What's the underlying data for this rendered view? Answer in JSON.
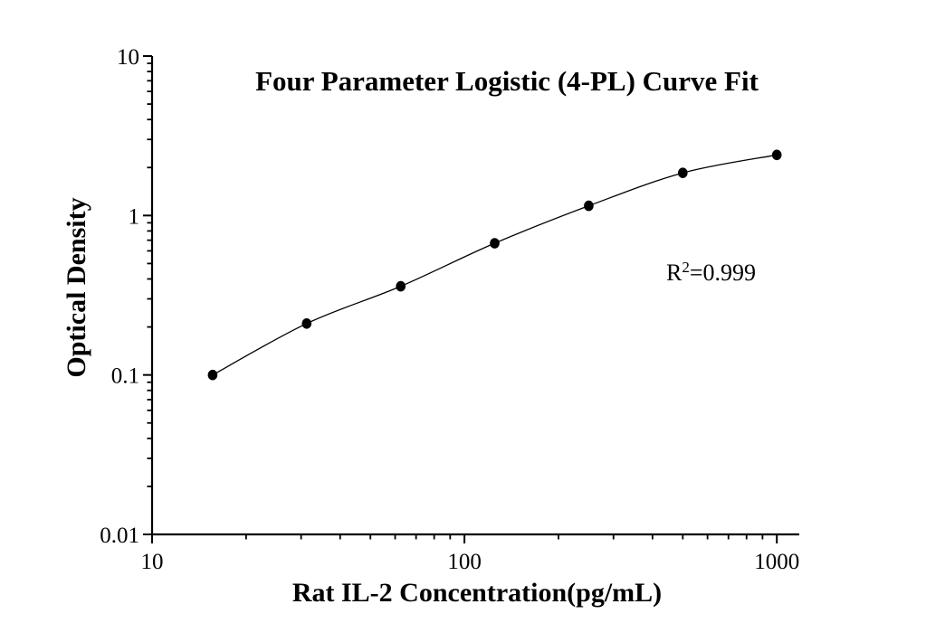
{
  "annotation": {
    "base": "R",
    "sup": "2",
    "rest": "=0.999"
  },
  "chart_data": {
    "type": "scatter",
    "fit_type": "4-PL logistic curve through points",
    "title": "Four Parameter Logistic (4-PL) Curve Fit",
    "xlabel": "Rat IL-2 Concentration(pg/mL)",
    "ylabel": "Optical Density",
    "r_squared": 0.999,
    "r_squared_label": "R²=0.999",
    "x_scale": "log",
    "y_scale": "log",
    "xlim": [
      10,
      1180
    ],
    "ylim": [
      0.01,
      10
    ],
    "x": [
      15.625,
      31.25,
      62.5,
      125,
      250,
      500,
      1000
    ],
    "y": [
      0.1,
      0.21,
      0.36,
      0.67,
      1.15,
      1.85,
      2.4
    ],
    "x_major_ticks": [
      10,
      100,
      1000
    ],
    "x_tick_labels": [
      "10",
      "100",
      "1000"
    ],
    "y_major_ticks": [
      0.01,
      0.1,
      1,
      10
    ],
    "y_tick_labels": [
      "0.01",
      "0.1",
      "1",
      "10"
    ],
    "minor_ticks": "log",
    "grid": false,
    "legend": "none",
    "marker": {
      "shape": "circle",
      "color": "#000000",
      "radius_px": 5.5
    },
    "line_color": "#000000",
    "axis_color": "#000000",
    "background": "#ffffff"
  }
}
